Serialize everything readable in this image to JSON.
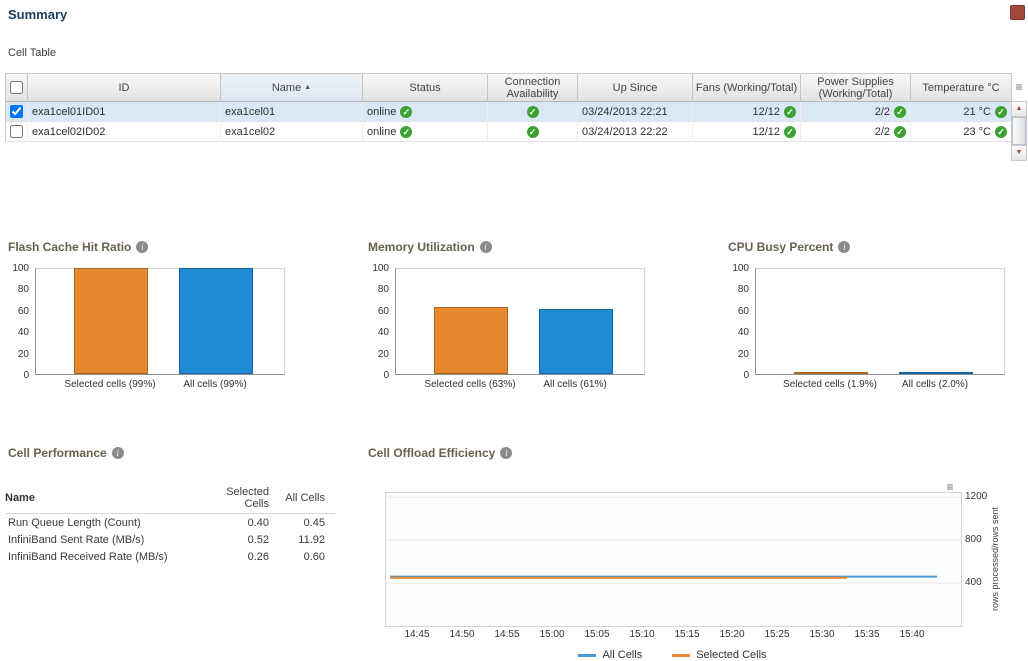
{
  "page": {
    "title": "Summary"
  },
  "icons": {
    "info": "i",
    "menu": "≡",
    "sort_asc": "▲",
    "check": "✓",
    "arrow_up": "▲",
    "arrow_down": "▼"
  },
  "cell_table": {
    "label": "Cell Table",
    "columns": [
      "ID",
      "Name",
      "Status",
      "Connection Availability",
      "Up Since",
      "Fans (Working/Total)",
      "Power Supplies (Working/Total)",
      "Temperature °C"
    ],
    "sorted_column": "Name",
    "rows": [
      {
        "selected": true,
        "id": "exa1cel01ID01",
        "name": "exa1cel01",
        "status": "online",
        "connection_ok": true,
        "up_since": "03/24/2013 22:21",
        "fans": "12/12",
        "power_supplies": "2/2",
        "temperature": "21 °C"
      },
      {
        "selected": false,
        "id": "exa1cel02ID02",
        "name": "exa1cel02",
        "status": "online",
        "connection_ok": true,
        "up_since": "03/24/2013 22:22",
        "fans": "12/12",
        "power_supplies": "2/2",
        "temperature": "23 °C"
      }
    ]
  },
  "cell_performance": {
    "title": "Cell Performance",
    "columns": [
      "Name",
      "Selected Cells",
      "All Cells"
    ],
    "rows": [
      {
        "name": "Run Queue Length (Count)",
        "selected": "0.40",
        "all": "0.45"
      },
      {
        "name": "InfiniBand Sent Rate (MB/s)",
        "selected": "0.52",
        "all": "11.92"
      },
      {
        "name": "InfiniBand Received Rate (MB/s)",
        "selected": "0.26",
        "all": "0.60"
      }
    ]
  },
  "chart_data": [
    {
      "type": "bar",
      "title": "Flash Cache Hit Ratio",
      "categories": [
        "Selected cells (99%)",
        "All cells (99%)"
      ],
      "values": [
        99,
        99
      ],
      "colors": [
        "#e5882e",
        "#1e8bd4"
      ],
      "ylim": [
        0,
        100
      ],
      "yticks": [
        0,
        20,
        40,
        60,
        80,
        100
      ],
      "grid": false
    },
    {
      "type": "bar",
      "title": "Memory Utilization",
      "categories": [
        "Selected cells (63%)",
        "All cells (61%)"
      ],
      "values": [
        63,
        61
      ],
      "colors": [
        "#e5882e",
        "#1e8bd4"
      ],
      "ylim": [
        0,
        100
      ],
      "yticks": [
        0,
        20,
        40,
        60,
        80,
        100
      ],
      "grid": false
    },
    {
      "type": "bar",
      "title": "CPU Busy Percent",
      "categories": [
        "Selected cells (1.9%)",
        "All cells (2.0%)"
      ],
      "values": [
        1.9,
        2.0
      ],
      "colors": [
        "#e5882e",
        "#1e8bd4"
      ],
      "ylim": [
        0,
        100
      ],
      "yticks": [
        0,
        20,
        40,
        60,
        80,
        100
      ],
      "grid": false
    },
    {
      "type": "line",
      "title": "Cell Offload Efficiency",
      "x": [
        "14:45",
        "14:50",
        "14:55",
        "15:00",
        "15:05",
        "15:10",
        "15:15",
        "15:20",
        "15:25",
        "15:30",
        "15:35",
        "15:40"
      ],
      "ylabel": "rows processed/rows sent",
      "ylim": [
        0,
        1240
      ],
      "yticks": [
        400,
        800,
        1200
      ],
      "legend_position": "bottom",
      "series": [
        {
          "name": "All Cells",
          "color": "#4a99d9",
          "values": [
            460,
            460,
            460,
            460,
            460,
            460,
            460,
            460,
            460,
            460,
            460,
            460
          ]
        },
        {
          "name": "Selected Cells",
          "color": "#e5882e",
          "values": [
            450,
            450,
            450,
            450,
            450,
            450,
            450,
            450,
            450,
            450,
            null,
            null
          ]
        }
      ]
    }
  ]
}
